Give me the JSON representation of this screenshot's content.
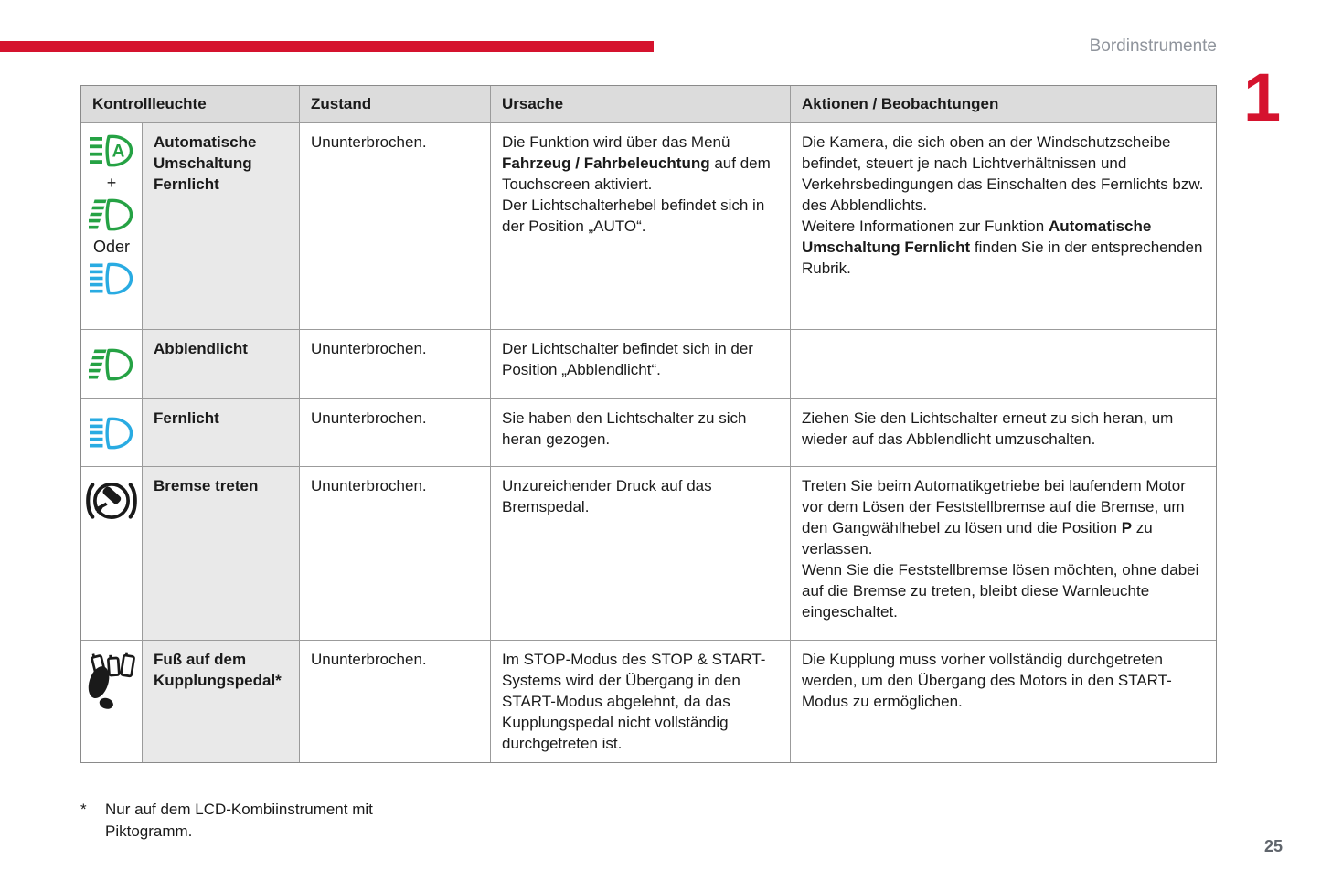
{
  "page": {
    "header_title": "Bordinstrumente",
    "chapter_number": "1",
    "page_number": "25",
    "footnote_marker": "*",
    "footnote_text": "Nur auf dem LCD-Kombiinstrument mit Piktogramm.",
    "colors": {
      "accent_red": "#d5132e",
      "icon_green": "#25a244",
      "icon_blue": "#29abe2",
      "icon_black": "#1a1a1a"
    }
  },
  "table": {
    "headers": [
      "Kontrollleuchte",
      "Zustand",
      "Ursache",
      "Aktionen / Beobachtungen"
    ],
    "rows": [
      {
        "icons": [
          "auto-high-beam-icon-green",
          "low-beam-icon-green",
          "high-beam-icon-blue"
        ],
        "sep_plus": "+",
        "sep_oder": "Oder",
        "title": "Automatische Umschaltung Fernlicht",
        "zustand": "Ununterbrochen.",
        "ursache": [
          {
            "t": "Die Funktion wird über das Menü "
          },
          {
            "t": "Fahrzeug / Fahrbeleuchtung",
            "b": true
          },
          {
            "t": " auf dem Touchscreen aktiviert.\nDer Lichtschalterhebel befindet sich in der Position „AUTO“."
          }
        ],
        "aktionen": [
          {
            "t": "Die Kamera, die sich oben an der Windschutzscheibe befindet, steuert je nach Lichtverhältnissen und Verkehrsbedingungen das Einschalten des Fernlichts bzw. des Abblendlichts.\nWeitere Informationen zur Funktion "
          },
          {
            "t": "Automatische Umschaltung Fernlicht",
            "b": true
          },
          {
            "t": " finden Sie in der entsprechenden Rubrik."
          }
        ]
      },
      {
        "icons": [
          "low-beam-icon-green"
        ],
        "title": "Abblendlicht",
        "zustand": "Ununterbrochen.",
        "ursache": [
          {
            "t": "Der Lichtschalter befindet sich in der Position „Abblendlicht“."
          }
        ],
        "aktionen": []
      },
      {
        "icons": [
          "high-beam-icon-blue"
        ],
        "title": "Fernlicht",
        "zustand": "Ununterbrochen.",
        "ursache": [
          {
            "t": "Sie haben den Lichtschalter zu sich heran gezogen."
          }
        ],
        "aktionen": [
          {
            "t": "Ziehen Sie den Lichtschalter erneut zu sich heran, um wieder auf das Abblendlicht umzuschalten."
          }
        ]
      },
      {
        "icons": [
          "brake-pedal-warning-icon"
        ],
        "title": "Bremse treten",
        "zustand": "Ununterbrochen.",
        "ursache": [
          {
            "t": "Unzureichender Druck auf das Bremspedal."
          }
        ],
        "aktionen": [
          {
            "t": "Treten Sie beim Automatikgetriebe bei laufendem Motor vor dem Lösen der Feststellbremse auf die Bremse, um den Gangwählhebel zu lösen und die Position "
          },
          {
            "t": "P",
            "b": true
          },
          {
            "t": " zu verlassen.\nWenn Sie die Feststellbremse lösen möchten, ohne dabei auf die Bremse zu treten, bleibt diese Warnleuchte eingeschaltet."
          }
        ]
      },
      {
        "icons": [
          "foot-on-clutch-pedal-icon"
        ],
        "title": "Fuß auf dem Kupplungspedal*",
        "zustand": "Ununterbrochen.",
        "ursache": [
          {
            "t": "Im STOP-Modus des STOP & START-Systems wird der Übergang in den START-Modus abgelehnt, da das Kupplungspedal nicht vollständig durchgetreten ist."
          }
        ],
        "aktionen": [
          {
            "t": "Die Kupplung muss vorher vollständig durchgetreten werden, um den Übergang des Motors in den START-Modus zu ermöglichen."
          }
        ]
      }
    ]
  }
}
